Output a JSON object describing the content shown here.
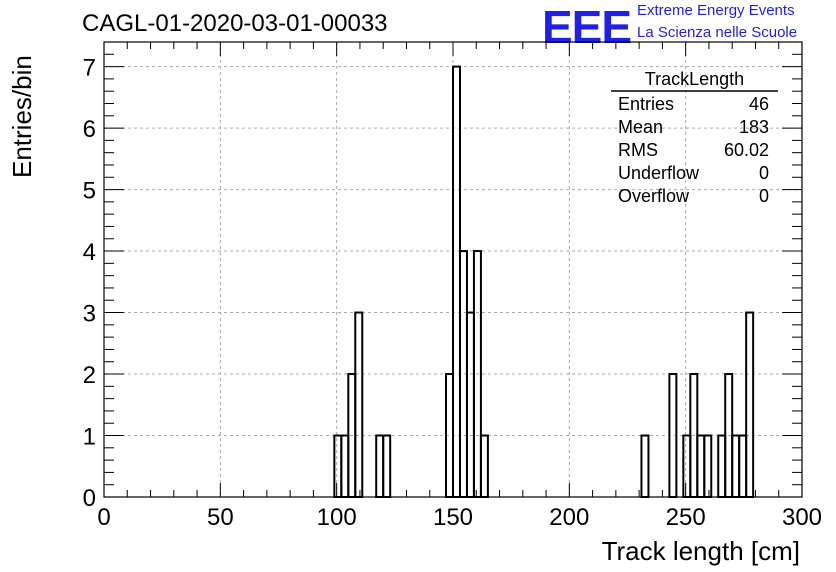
{
  "header": {
    "title": "CAGL-01-2020-03-01-00033",
    "logo_text": "EEE",
    "logo_line1": "Extreme Energy Events",
    "logo_line2": "La Scienza nelle Scuole",
    "brand_color": "#1f1fe6"
  },
  "stats_box": {
    "title": "TrackLength",
    "rows": [
      {
        "label": "Entries",
        "value": "46"
      },
      {
        "label": "Mean",
        "value": "183"
      },
      {
        "label": "RMS",
        "value": "60.02"
      },
      {
        "label": "Underflow",
        "value": "0"
      },
      {
        "label": "Overflow",
        "value": "0"
      }
    ]
  },
  "chart_data": {
    "type": "bar",
    "style": "step-histogram",
    "xlabel": "Track length [cm]",
    "ylabel": "Entries/bin",
    "xlim": [
      0,
      300
    ],
    "ylim": [
      0,
      7.4
    ],
    "grid": true,
    "x_ticks": [
      0,
      50,
      100,
      150,
      200,
      250,
      300
    ],
    "y_ticks": [
      0,
      1,
      2,
      3,
      4,
      5,
      6,
      7
    ],
    "bin_width": 3,
    "bins": [
      {
        "x": 99,
        "value": 1
      },
      {
        "x": 102,
        "value": 1
      },
      {
        "x": 105,
        "value": 2
      },
      {
        "x": 108,
        "value": 3
      },
      {
        "x": 117,
        "value": 1
      },
      {
        "x": 120,
        "value": 1
      },
      {
        "x": 147,
        "value": 2
      },
      {
        "x": 150,
        "value": 7
      },
      {
        "x": 153,
        "value": 4
      },
      {
        "x": 156,
        "value": 3
      },
      {
        "x": 159,
        "value": 4
      },
      {
        "x": 162,
        "value": 1
      },
      {
        "x": 231,
        "value": 1
      },
      {
        "x": 243,
        "value": 2
      },
      {
        "x": 249,
        "value": 1
      },
      {
        "x": 252,
        "value": 2
      },
      {
        "x": 255,
        "value": 1
      },
      {
        "x": 258,
        "value": 1
      },
      {
        "x": 264,
        "value": 1
      },
      {
        "x": 267,
        "value": 2
      },
      {
        "x": 270,
        "value": 1
      },
      {
        "x": 273,
        "value": 1
      },
      {
        "x": 276,
        "value": 3
      }
    ]
  }
}
